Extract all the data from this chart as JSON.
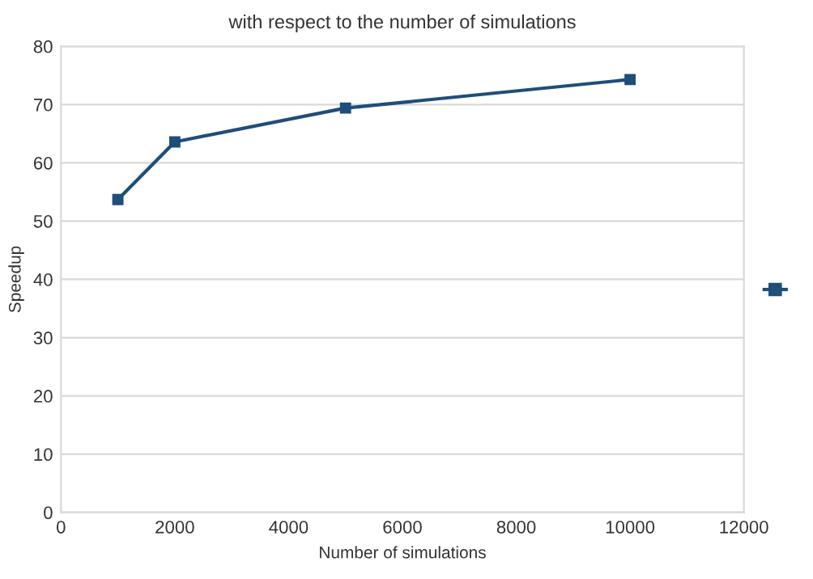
{
  "chart_data": {
    "type": "line",
    "title": "with respect to the number of simulations",
    "xlabel": "Number of simulations",
    "ylabel": "Speedup",
    "x": [
      1000,
      2000,
      5000,
      10000
    ],
    "series": [
      {
        "color": "#1f4e79",
        "values": [
          53.7,
          63.6,
          69.4,
          74.3
        ]
      }
    ],
    "xlim": [
      0,
      12000
    ],
    "xticks": [
      0,
      2000,
      4000,
      6000,
      8000,
      10000,
      12000
    ],
    "ylim": [
      0,
      80
    ],
    "yticks": [
      0,
      10,
      20,
      30,
      40,
      50,
      60,
      70,
      80
    ],
    "grid": "y",
    "marker": "square",
    "line_style": "solid"
  }
}
